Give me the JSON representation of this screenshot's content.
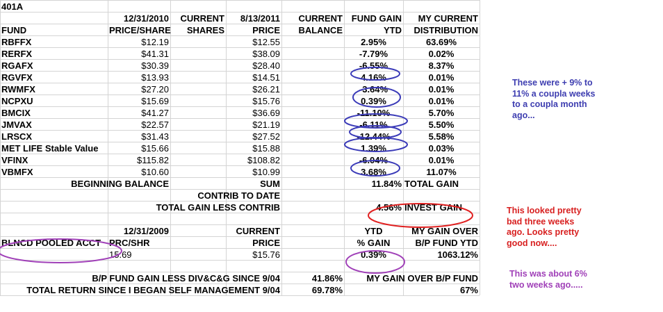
{
  "top_left": "401A",
  "headers": {
    "row1": [
      "",
      "12/31/2010",
      "CURRENT",
      "8/13/2011",
      "CURRENT",
      "FUND GAIN",
      "MY CURRENT"
    ],
    "row2": [
      "FUND",
      "PRICE/SHARE",
      "SHARES",
      "PRICE",
      "BALANCE",
      "YTD",
      "DISTRIBUTION"
    ]
  },
  "funds": [
    {
      "fund": "RBFFX",
      "price_2010": "$12.19",
      "shares": "",
      "price_2011": "$12.55",
      "balance": "",
      "gain": "2.95%",
      "dist": "63.69%"
    },
    {
      "fund": "RERFX",
      "price_2010": "$41.31",
      "shares": "",
      "price_2011": "$38.09",
      "balance": "",
      "gain": "-7.79%",
      "dist": "0.02%"
    },
    {
      "fund": "RGAFX",
      "price_2010": "$30.39",
      "shares": "",
      "price_2011": "$28.40",
      "balance": "",
      "gain": "-6.55%",
      "dist": "8.37%"
    },
    {
      "fund": "RGVFX",
      "price_2010": "$13.93",
      "shares": "",
      "price_2011": "$14.51",
      "balance": "",
      "gain": "4.16%",
      "dist": "0.01%"
    },
    {
      "fund": "RWMFX",
      "price_2010": "$27.20",
      "shares": "",
      "price_2011": "$26.21",
      "balance": "",
      "gain": "-3.64%",
      "dist": "0.01%"
    },
    {
      "fund": "NCPXU",
      "price_2010": "$15.69",
      "shares": "",
      "price_2011": "$15.76",
      "balance": "",
      "gain": "0.39%",
      "dist": "0.01%"
    },
    {
      "fund": "BMCIX",
      "price_2010": "$41.27",
      "shares": "",
      "price_2011": "$36.69",
      "balance": "",
      "gain": "-11.10%",
      "dist": "5.70%"
    },
    {
      "fund": "JMVAX",
      "price_2010": "$22.57",
      "shares": "",
      "price_2011": "$21.19",
      "balance": "",
      "gain": "-6.11%",
      "dist": "5.50%"
    },
    {
      "fund": "LRSCX",
      "price_2010": "$31.43",
      "shares": "",
      "price_2011": "$27.52",
      "balance": "",
      "gain": "-12.44%",
      "dist": "5.58%"
    },
    {
      "fund": "MET LIFE Stable Value",
      "price_2010": "$15.66",
      "shares": "",
      "price_2011": "$15.88",
      "balance": "",
      "gain": "1.39%",
      "dist": "0.03%"
    },
    {
      "fund": "VFINX",
      "price_2010": "$115.82",
      "shares": "",
      "price_2011": "$108.82",
      "balance": "",
      "gain": "-6.04%",
      "dist": "0.01%"
    },
    {
      "fund": "VBMFX",
      "price_2010": "$10.60",
      "shares": "",
      "price_2011": "$10.99",
      "balance": "",
      "gain": "3.68%",
      "dist": "11.07%"
    }
  ],
  "summary": {
    "beginning_balance": "BEGINNING BALANCE",
    "sum": "SUM",
    "total_gain_value": "11.84%",
    "total_gain_label": "TOTAL GAIN",
    "contrib_to_date": "CONTRIB TO DATE",
    "total_gain_less_contrib": "TOTAL GAIN LESS CONTRIB",
    "invest_gain_value": "4.56%",
    "invest_gain_label": "INVEST GAIN"
  },
  "pooled": {
    "hdr1": {
      "date": "12/31/2009",
      "current": "CURRENT",
      "ytd": "YTD",
      "my_gain": "MY GAIN OVER"
    },
    "hdr2": {
      "name": "BLNCD POOLED ACCT",
      "prc": "PRC/SHR",
      "price": "PRICE",
      "pct_gain": "% GAIN",
      "bp_fund": "B/P FUND YTD"
    },
    "row": {
      "prc": "15.69",
      "price": "$15.76",
      "gain": "0.39%",
      "over": "1063.12%"
    }
  },
  "bottom": {
    "r1_label": "B/P FUND GAIN LESS DIV&C&G SINCE 9/04",
    "r1_value": "41.86%",
    "r1_label2": "MY GAIN OVER  B/P FUND",
    "r2_label": "TOTAL RETURN SINCE I BEGAN SELF MANAGEMENT 9/04",
    "r2_value": "69.78%",
    "r2_value2": "67%"
  },
  "annotations": {
    "blue": "These were + 9% to 11% a coupla weeks to a coupla month ago...",
    "red": "This looked pretty bad three weeks ago.  Looks pretty good now....",
    "purple": "This was about 6% two weeks ago....."
  },
  "colors": {
    "blue_circle": "#3a3ab8",
    "red_circle": "#e02020",
    "purple_circle": "#a040b8",
    "gridline": "#d4d4d4"
  }
}
